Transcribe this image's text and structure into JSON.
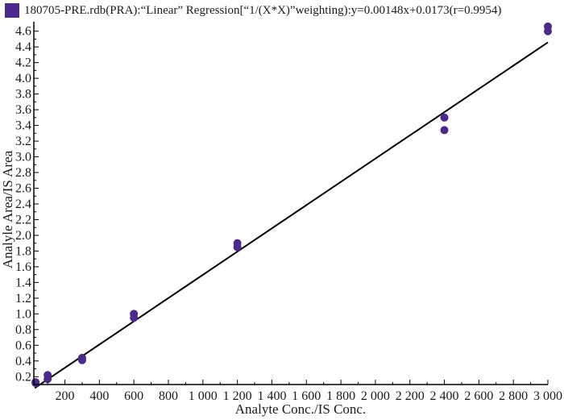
{
  "chart_data": {
    "type": "scatter",
    "title": "180705-PRE.rdb(PRA):“Linear” Regression[“1/(X*X)”weighting):y=0.00148x+0.0173(r=0.9954)",
    "xlabel": "Analyte Conc./IS Conc.",
    "ylabel": "Analyle Area/IS Area",
    "xlim": [
      20,
      3000
    ],
    "ylim": [
      0.1,
      4.72
    ],
    "x_ticks": [
      200,
      400,
      600,
      800,
      1000,
      1200,
      1400,
      1600,
      1800,
      2000,
      2200,
      2400,
      2600,
      2800,
      3000
    ],
    "x_tick_labels": [
      "200",
      "400",
      "600",
      "800",
      "1 000",
      "1 200",
      "1 400",
      "1 600",
      "1 800",
      "2 000",
      "2 200",
      "2 400",
      "2 600",
      "2 800",
      "3 000"
    ],
    "y_ticks": [
      0.2,
      0.4,
      0.6,
      0.8,
      1.0,
      1.2,
      1.4,
      1.6,
      1.8,
      2.0,
      2.2,
      2.4,
      2.6,
      2.8,
      3.0,
      3.2,
      3.4,
      3.6,
      3.8,
      4.0,
      4.2,
      4.4,
      4.6
    ],
    "y_tick_labels": [
      "0.2",
      "0.4",
      "0.6",
      "0.8",
      "1.0",
      "1.2",
      "1.4",
      "1.6",
      "1.8",
      "2.0",
      "2.2",
      "2.4",
      "2.6",
      "2.8",
      "3.0",
      "3.2",
      "3.4",
      "3.6",
      "3.8",
      "4.0",
      "4.2",
      "4.4",
      "4.6"
    ],
    "grid": false,
    "series": [
      {
        "color": "#4b2a8c",
        "points": [
          {
            "x": 30,
            "y": 0.13
          },
          {
            "x": 30,
            "y": 0.12
          },
          {
            "x": 100,
            "y": 0.22
          },
          {
            "x": 100,
            "y": 0.17
          },
          {
            "x": 300,
            "y": 0.44
          },
          {
            "x": 300,
            "y": 0.41
          },
          {
            "x": 600,
            "y": 1.0
          },
          {
            "x": 600,
            "y": 0.95
          },
          {
            "x": 1200,
            "y": 1.9
          },
          {
            "x": 1200,
            "y": 1.85
          },
          {
            "x": 2400,
            "y": 3.5
          },
          {
            "x": 2400,
            "y": 3.34
          },
          {
            "x": 3000,
            "y": 4.66
          },
          {
            "x": 3000,
            "y": 4.6
          }
        ]
      }
    ],
    "regression": {
      "slope": 0.00148,
      "intercept": 0.0173,
      "color": "#000000"
    }
  }
}
